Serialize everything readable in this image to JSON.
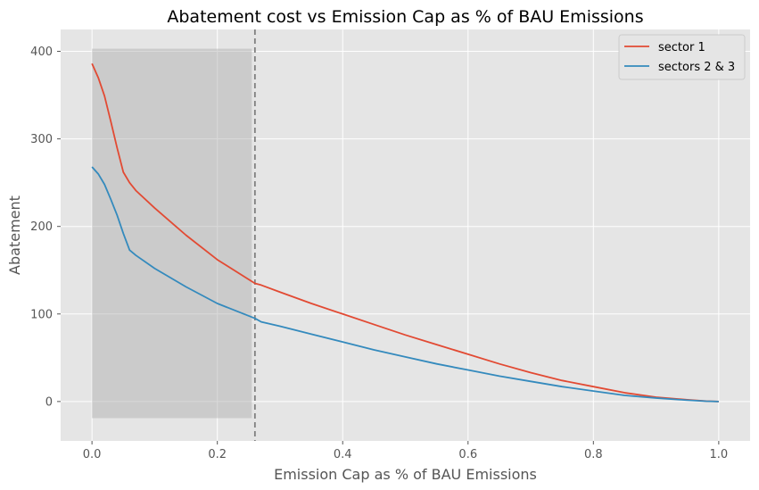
{
  "chart_data": {
    "type": "line",
    "title": "Abatement cost vs Emission Cap as % of BAU Emissions",
    "xlabel": "Emission Cap as % of BAU Emissions",
    "ylabel": "Abatement",
    "xlim": [
      -0.05,
      1.05
    ],
    "ylim": [
      -45,
      425
    ],
    "xticks": [
      0.0,
      0.2,
      0.4,
      0.6,
      0.8,
      1.0
    ],
    "xtick_labels": [
      "0.0",
      "0.2",
      "0.4",
      "0.6",
      "0.8",
      "1.0"
    ],
    "yticks": [
      0,
      100,
      200,
      300,
      400
    ],
    "ytick_labels": [
      "0",
      "100",
      "200",
      "300",
      "400"
    ],
    "grid": true,
    "legend_position": "top-right",
    "shaded_region": {
      "x": [
        0.0,
        0.255
      ],
      "y": [
        -19,
        403
      ],
      "color": "#aaaaaa"
    },
    "vline": {
      "x": 0.26,
      "style": "dashed",
      "color": "#808080"
    },
    "series": [
      {
        "name": "sector 1",
        "color": "#E24A33",
        "x": [
          0.0,
          0.01,
          0.02,
          0.03,
          0.04,
          0.05,
          0.06,
          0.07,
          0.1,
          0.15,
          0.2,
          0.26,
          0.27,
          0.3,
          0.35,
          0.4,
          0.45,
          0.5,
          0.55,
          0.6,
          0.65,
          0.7,
          0.75,
          0.8,
          0.85,
          0.9,
          0.95,
          0.98,
          1.0
        ],
        "y": [
          386,
          370,
          349,
          320,
          290,
          262,
          250,
          241,
          221,
          190,
          162,
          135,
          133,
          125,
          112,
          100,
          88,
          76,
          65,
          54,
          43,
          33,
          24,
          17,
          10,
          5,
          2,
          0.5,
          0
        ]
      },
      {
        "name": "sectors 2 & 3",
        "color": "#348ABD",
        "x": [
          0.0,
          0.01,
          0.02,
          0.03,
          0.04,
          0.05,
          0.06,
          0.07,
          0.1,
          0.15,
          0.2,
          0.26,
          0.27,
          0.3,
          0.35,
          0.4,
          0.45,
          0.5,
          0.55,
          0.6,
          0.65,
          0.7,
          0.75,
          0.8,
          0.85,
          0.9,
          0.95,
          0.98,
          1.0
        ],
        "y": [
          268,
          260,
          248,
          231,
          213,
          192,
          173,
          167,
          152,
          131,
          112,
          95,
          91,
          86,
          77,
          68,
          59,
          51,
          43,
          36,
          29,
          23,
          17,
          12,
          7,
          4,
          1.5,
          0.4,
          0
        ]
      }
    ]
  }
}
